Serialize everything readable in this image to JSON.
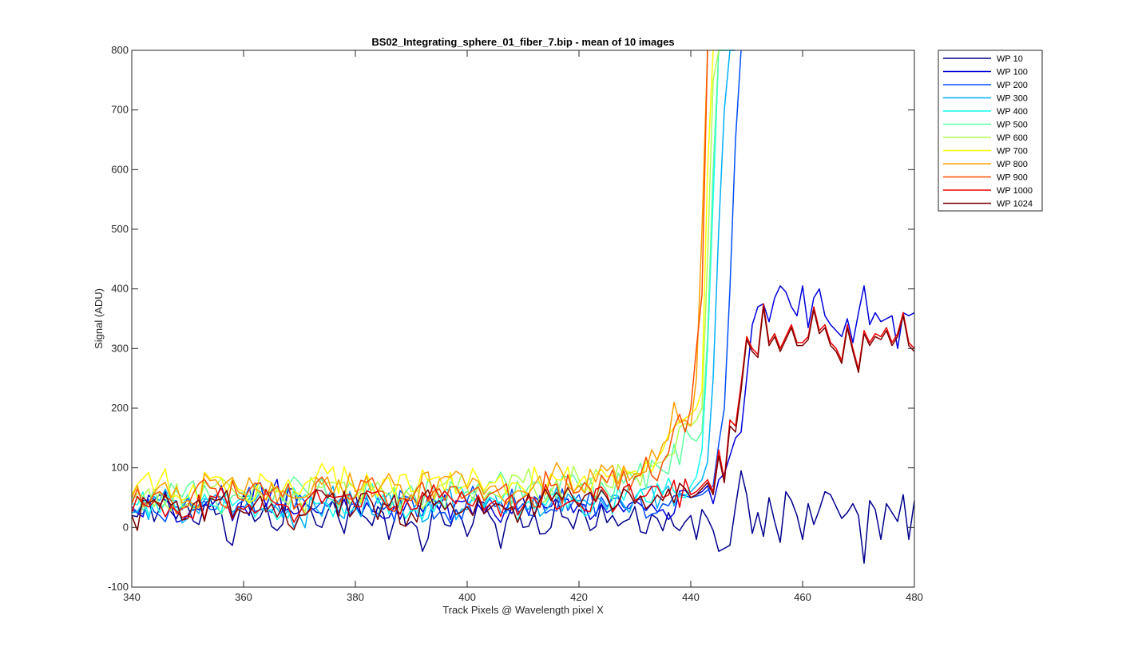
{
  "chart_data": {
    "type": "line",
    "title": "BS02_Integrating_sphere_01_fiber_7.bip - mean of 10 images",
    "xlabel": "Track Pixels @ Wavelength pixel X",
    "ylabel": "Signal (ADU)",
    "xlim": [
      340,
      480
    ],
    "ylim": [
      -100,
      800
    ],
    "xticks": [
      340,
      360,
      380,
      400,
      420,
      440,
      460,
      480
    ],
    "yticks": [
      -100,
      0,
      100,
      200,
      300,
      400,
      500,
      600,
      700,
      800
    ],
    "grid": false,
    "legend_position": "outside-top-right",
    "noise_band": {
      "x_start": 340,
      "x_end": 440,
      "mean": 35,
      "amplitude": 40
    },
    "series": [
      {
        "name": "WP 10",
        "color": "#00008F",
        "x": [
          340,
          342,
          344,
          346,
          348,
          350,
          352,
          354,
          356,
          358,
          360,
          362,
          364,
          366,
          368,
          370,
          372,
          374,
          376,
          378,
          380,
          382,
          384,
          386,
          388,
          390,
          392,
          394,
          396,
          398,
          400,
          402,
          404,
          406,
          408,
          410,
          412,
          414,
          416,
          418,
          420,
          422,
          424,
          426,
          428,
          430,
          432,
          434,
          436,
          438,
          440,
          441,
          442,
          443,
          444,
          445,
          446,
          447,
          448,
          449,
          450,
          451,
          452,
          453,
          454,
          455,
          456,
          457,
          458,
          459,
          460,
          461,
          462,
          463,
          464,
          465,
          466,
          467,
          468,
          469,
          470,
          471,
          472,
          473,
          474,
          475,
          476,
          477,
          478,
          479,
          480
        ],
        "y": [
          20,
          45,
          10,
          60,
          15,
          35,
          5,
          50,
          25,
          -30,
          55,
          10,
          40,
          -5,
          65,
          20,
          30,
          0,
          45,
          -10,
          55,
          15,
          35,
          -20,
          50,
          10,
          -40,
          40,
          5,
          30,
          -15,
          45,
          20,
          -35,
          35,
          0,
          25,
          -10,
          50,
          15,
          30,
          -5,
          40,
          20,
          10,
          35,
          -10,
          15,
          25,
          -5,
          20,
          -20,
          30,
          15,
          -5,
          -40,
          -35,
          -30,
          35,
          95,
          55,
          -10,
          25,
          -15,
          50,
          10,
          -25,
          60,
          45,
          20,
          -20,
          40,
          5,
          30,
          60,
          55,
          35,
          15,
          25,
          40,
          20,
          -60,
          45,
          30,
          -20,
          40,
          25,
          10,
          55,
          -20,
          45
        ]
      },
      {
        "name": "WP 100",
        "color": "#0000DF",
        "x": [
          340,
          345,
          350,
          355,
          360,
          365,
          370,
          375,
          380,
          385,
          390,
          395,
          400,
          405,
          410,
          415,
          420,
          425,
          430,
          435,
          440,
          441,
          442,
          443,
          444,
          445,
          446,
          447,
          448,
          449,
          450,
          451,
          452,
          453,
          454,
          455,
          456,
          457,
          458,
          459,
          460,
          461,
          462,
          463,
          464,
          465,
          466,
          467,
          468,
          469,
          470,
          471,
          472,
          473,
          474,
          475,
          476,
          477,
          478,
          479,
          480
        ],
        "y": [
          30,
          55,
          20,
          45,
          35,
          60,
          25,
          50,
          40,
          15,
          55,
          30,
          45,
          20,
          50,
          35,
          40,
          25,
          45,
          30,
          50,
          55,
          60,
          70,
          40,
          80,
          90,
          120,
          150,
          160,
          250,
          340,
          370,
          375,
          345,
          385,
          405,
          395,
          370,
          355,
          405,
          335,
          385,
          400,
          355,
          340,
          330,
          320,
          350,
          310,
          360,
          405,
          340,
          360,
          345,
          350,
          355,
          300,
          360,
          355,
          360
        ]
      },
      {
        "name": "WP 200",
        "color": "#004FFF",
        "x": [
          340,
          345,
          350,
          355,
          360,
          365,
          370,
          375,
          380,
          385,
          390,
          395,
          400,
          405,
          410,
          415,
          420,
          425,
          430,
          435,
          440,
          442,
          444,
          445,
          446,
          447,
          448,
          449
        ],
        "y": [
          35,
          20,
          50,
          30,
          45,
          25,
          55,
          35,
          40,
          30,
          50,
          25,
          45,
          35,
          40,
          30,
          55,
          35,
          45,
          40,
          50,
          55,
          70,
          140,
          200,
          400,
          650,
          800
        ]
      },
      {
        "name": "WP 300",
        "color": "#00AFFF",
        "x": [
          340,
          345,
          350,
          355,
          360,
          365,
          370,
          375,
          380,
          385,
          390,
          395,
          400,
          405,
          410,
          415,
          420,
          425,
          430,
          435,
          440,
          442,
          443,
          444,
          445,
          446,
          447,
          448
        ],
        "y": [
          25,
          45,
          15,
          55,
          30,
          40,
          20,
          50,
          35,
          45,
          25,
          40,
          30,
          55,
          35,
          40,
          45,
          30,
          50,
          60,
          60,
          80,
          110,
          250,
          500,
          700,
          800,
          800
        ]
      },
      {
        "name": "WP 400",
        "color": "#0FFFEF",
        "x": [
          340,
          345,
          350,
          355,
          360,
          365,
          370,
          375,
          380,
          385,
          390,
          395,
          400,
          405,
          410,
          415,
          420,
          425,
          430,
          435,
          440,
          441,
          442,
          443,
          444,
          445,
          446,
          447
        ],
        "y": [
          40,
          25,
          55,
          35,
          50,
          30,
          45,
          40,
          35,
          55,
          30,
          50,
          40,
          45,
          35,
          55,
          40,
          50,
          45,
          55,
          70,
          85,
          130,
          300,
          550,
          800,
          800,
          800
        ]
      },
      {
        "name": "WP 500",
        "color": "#5FFF9F",
        "x": [
          340,
          345,
          350,
          355,
          360,
          365,
          370,
          375,
          380,
          385,
          390,
          395,
          400,
          405,
          410,
          415,
          420,
          425,
          430,
          435,
          440,
          441,
          442,
          443,
          444,
          445,
          446
        ],
        "y": [
          50,
          35,
          70,
          45,
          60,
          40,
          75,
          50,
          65,
          45,
          70,
          55,
          60,
          75,
          50,
          65,
          70,
          60,
          80,
          95,
          150,
          145,
          160,
          320,
          600,
          800,
          800
        ]
      },
      {
        "name": "WP 600",
        "color": "#AFFF4F",
        "x": [
          340,
          345,
          350,
          355,
          360,
          365,
          370,
          375,
          380,
          385,
          390,
          395,
          400,
          405,
          410,
          415,
          420,
          425,
          430,
          435,
          440,
          441,
          442,
          443,
          444,
          445
        ],
        "y": [
          45,
          60,
          40,
          70,
          50,
          65,
          45,
          75,
          55,
          60,
          50,
          70,
          65,
          55,
          75,
          60,
          80,
          70,
          90,
          110,
          170,
          180,
          200,
          450,
          750,
          800
        ]
      },
      {
        "name": "WP 700",
        "color": "#FFFF00",
        "x": [
          340,
          345,
          350,
          355,
          360,
          365,
          370,
          375,
          380,
          385,
          390,
          395,
          400,
          405,
          410,
          415,
          420,
          425,
          430,
          435,
          440,
          441,
          442,
          443,
          444
        ],
        "y": [
          55,
          80,
          50,
          85,
          60,
          75,
          55,
          90,
          65,
          80,
          60,
          85,
          70,
          75,
          65,
          90,
          75,
          85,
          95,
          130,
          190,
          200,
          230,
          600,
          800
        ]
      },
      {
        "name": "WP 800",
        "color": "#FF9F00",
        "x": [
          340,
          345,
          350,
          355,
          360,
          365,
          370,
          375,
          380,
          385,
          390,
          395,
          400,
          405,
          410,
          415,
          420,
          425,
          430,
          435,
          437,
          439,
          440,
          441,
          442,
          443
        ],
        "y": [
          50,
          70,
          45,
          80,
          55,
          75,
          50,
          85,
          60,
          75,
          55,
          80,
          65,
          70,
          60,
          85,
          70,
          95,
          90,
          140,
          210,
          180,
          170,
          250,
          500,
          800
        ]
      },
      {
        "name": "WP 900",
        "color": "#FF4F00",
        "x": [
          340,
          345,
          350,
          355,
          360,
          365,
          370,
          375,
          380,
          385,
          390,
          395,
          400,
          405,
          410,
          415,
          420,
          425,
          430,
          435,
          438,
          439,
          440,
          441,
          442,
          443
        ],
        "y": [
          40,
          60,
          35,
          65,
          45,
          60,
          40,
          70,
          50,
          60,
          45,
          65,
          55,
          60,
          50,
          70,
          60,
          75,
          85,
          110,
          190,
          160,
          200,
          300,
          390,
          800
        ]
      },
      {
        "name": "WP 1000",
        "color": "#EF0000",
        "x": [
          340,
          345,
          350,
          355,
          360,
          365,
          370,
          375,
          380,
          385,
          390,
          395,
          400,
          405,
          410,
          415,
          420,
          425,
          430,
          435,
          440,
          441,
          442,
          443,
          444,
          445,
          446,
          447,
          448,
          449,
          450,
          451,
          452,
          453,
          454,
          455,
          456,
          457,
          458,
          459,
          460,
          461,
          462,
          463,
          464,
          465,
          466,
          467,
          468,
          469,
          470,
          471,
          472,
          473,
          474,
          475,
          476,
          477,
          478,
          479,
          480
        ],
        "y": [
          25,
          40,
          20,
          50,
          30,
          45,
          25,
          55,
          35,
          45,
          30,
          50,
          40,
          45,
          35,
          50,
          40,
          55,
          45,
          50,
          55,
          60,
          70,
          80,
          60,
          130,
          80,
          180,
          170,
          240,
          320,
          300,
          290,
          375,
          310,
          325,
          300,
          320,
          340,
          310,
          310,
          320,
          370,
          330,
          340,
          310,
          300,
          280,
          340,
          300,
          265,
          330,
          310,
          325,
          320,
          335,
          310,
          325,
          360,
          310,
          300
        ]
      },
      {
        "name": "WP 1024",
        "color": "#7F0000",
        "x": [
          340,
          345,
          350,
          355,
          360,
          365,
          370,
          375,
          380,
          385,
          390,
          395,
          400,
          405,
          410,
          415,
          420,
          425,
          430,
          435,
          440,
          441,
          442,
          443,
          444,
          445,
          446,
          447,
          448,
          449,
          450,
          451,
          452,
          453,
          454,
          455,
          456,
          457,
          458,
          459,
          460,
          461,
          462,
          463,
          464,
          465,
          466,
          467,
          468,
          469,
          470,
          471,
          472,
          473,
          474,
          475,
          476,
          477,
          478,
          479,
          480
        ],
        "y": [
          20,
          35,
          15,
          45,
          25,
          40,
          20,
          50,
          30,
          40,
          25,
          45,
          35,
          40,
          30,
          45,
          35,
          50,
          40,
          45,
          50,
          55,
          65,
          75,
          55,
          120,
          75,
          170,
          160,
          230,
          315,
          295,
          285,
          370,
          305,
          320,
          295,
          315,
          335,
          305,
          305,
          315,
          365,
          325,
          335,
          305,
          295,
          275,
          335,
          295,
          260,
          325,
          305,
          320,
          315,
          330,
          305,
          320,
          355,
          305,
          295
        ]
      }
    ]
  }
}
